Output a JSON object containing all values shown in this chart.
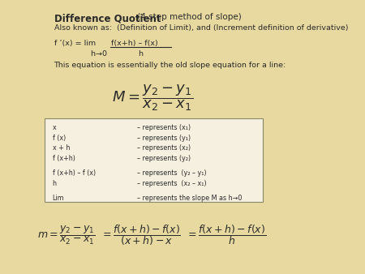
{
  "background_color": "#e8d9a0",
  "title_bold": "Difference Quotient",
  "title_normal": " (4 step method of slope)",
  "subtitle": "Also known as:  (Definition of Limit), and (Increment definition of derivative)",
  "slope_note": "This equation is essentially the old slope equation for a line:",
  "box_bg": "#f5f0e0",
  "box_lines": [
    [
      "x",
      "– represents (x₁)"
    ],
    [
      "f (x)",
      "– represents (y₁)"
    ],
    [
      "x + h",
      "– represents (x₂)"
    ],
    [
      "f (x+h)",
      "– represents (y₂)"
    ],
    [
      "",
      ""
    ],
    [
      "f (x+h) – f (x)",
      "– represents  (y₂ – y₁)"
    ],
    [
      "h",
      "– represents  (x₂ – x₁)"
    ],
    [
      "",
      ""
    ],
    [
      "Lim",
      "– represents the slope M as h→0"
    ]
  ],
  "text_color": "#2a2a2a",
  "box_border_color": "#888866"
}
